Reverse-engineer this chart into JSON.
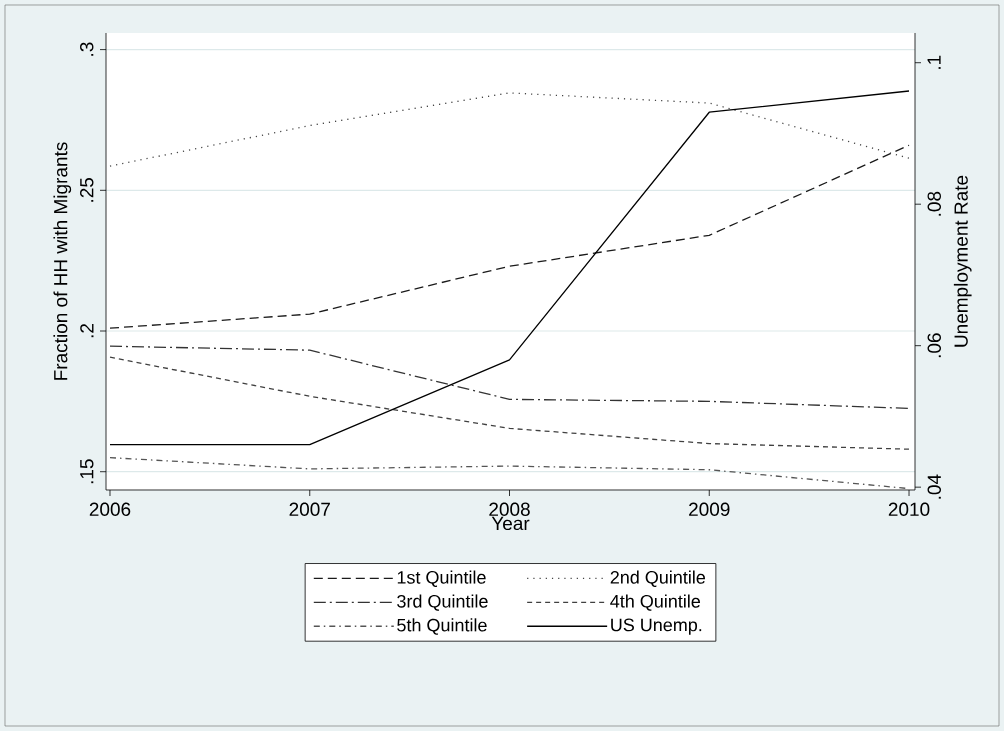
{
  "chart_data": {
    "type": "line",
    "xlabel": "Year",
    "ylabel": "Fraction of HH with Migrants",
    "y2label": "Unemployment Rate",
    "x": [
      2006,
      2007,
      2008,
      2009,
      2010
    ],
    "xlim": [
      2005.98,
      2010.03
    ],
    "xticks": [
      2006,
      2007,
      2008,
      2009,
      2010
    ],
    "ylim": [
      0.1435,
      0.3059
    ],
    "yticks": [
      {
        "value": 0.15,
        "label": ".15"
      },
      {
        "value": 0.2,
        "label": ".2"
      },
      {
        "value": 0.25,
        "label": ".25"
      },
      {
        "value": 0.3,
        "label": ".3"
      }
    ],
    "y2lim": [
      0.0396,
      0.1042
    ],
    "y2ticks": [
      {
        "value": 0.04,
        "label": ".04"
      },
      {
        "value": 0.06,
        "label": ".06"
      },
      {
        "value": 0.08,
        "label": ".08"
      },
      {
        "value": 0.1,
        "label": ".1"
      }
    ],
    "grid": "y",
    "legend": "bottom",
    "marker": "none",
    "series": [
      {
        "name": "1st Quintile",
        "color": "#1a1a1a",
        "line_style": "dashed",
        "values": [
          0.201,
          0.206,
          0.223,
          0.234,
          0.266
        ]
      },
      {
        "name": "2nd Quintile",
        "color": "#444444",
        "line_style": "dotted",
        "values": [
          0.2586,
          0.273,
          0.2846,
          0.281,
          0.2614
        ]
      },
      {
        "name": "3rd Quintile",
        "color": "#333333",
        "line_style": "dashdot",
        "values": [
          0.1946,
          0.1932,
          0.1757,
          0.175,
          0.1725
        ]
      },
      {
        "name": "4th Quintile",
        "color": "#404040",
        "line_style": "densely dashed",
        "values": [
          0.1907,
          0.1768,
          0.1654,
          0.16,
          0.158
        ]
      },
      {
        "name": "5th Quintile",
        "color": "#555555",
        "line_style": "densely dashdot",
        "values": [
          0.155,
          0.151,
          0.152,
          0.1507,
          0.144
        ]
      },
      {
        "name": "US Unemp.",
        "color": "#000000",
        "line_style": "solid",
        "axis": "y2",
        "values": [
          0.046,
          0.046,
          0.058,
          0.093,
          0.096
        ]
      }
    ]
  }
}
